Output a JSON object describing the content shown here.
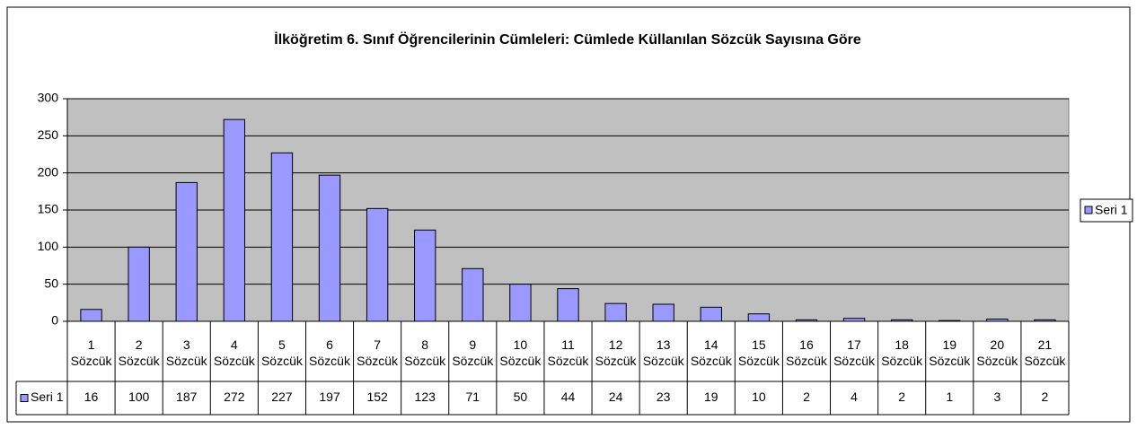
{
  "chart_data": {
    "type": "bar",
    "title": "İlköğretim 6. Sınıf Öğrencilerinin Cümleleri: Cümlede Küllanılan Sözcük Sayısına Göre",
    "categories": [
      "1 Sözcük",
      "2 Sözcük",
      "3 Sözcük",
      "4 Sözcük",
      "5 Sözcük",
      "6 Sözcük",
      "7 Sözcük",
      "8 Sözcük",
      "9 Sözcük",
      "10 Sözcük",
      "11 Sözcük",
      "12 Sözcük",
      "13 Sözcük",
      "14 Sözcük",
      "15 Sözcük",
      "16 Sözcük",
      "17 Sözcük",
      "18 Sözcük",
      "19 Sözcük",
      "20 Sözcük",
      "21 Sözcük"
    ],
    "series": [
      {
        "name": "Seri 1",
        "color": "#9999ff",
        "values": [
          16,
          100,
          187,
          272,
          227,
          197,
          152,
          123,
          71,
          50,
          44,
          24,
          23,
          19,
          10,
          2,
          4,
          2,
          1,
          3,
          2
        ]
      }
    ],
    "ylim": [
      0,
      300
    ],
    "yticks": [
      0,
      50,
      100,
      150,
      200,
      250,
      300
    ],
    "grid": true,
    "legend": "right"
  }
}
